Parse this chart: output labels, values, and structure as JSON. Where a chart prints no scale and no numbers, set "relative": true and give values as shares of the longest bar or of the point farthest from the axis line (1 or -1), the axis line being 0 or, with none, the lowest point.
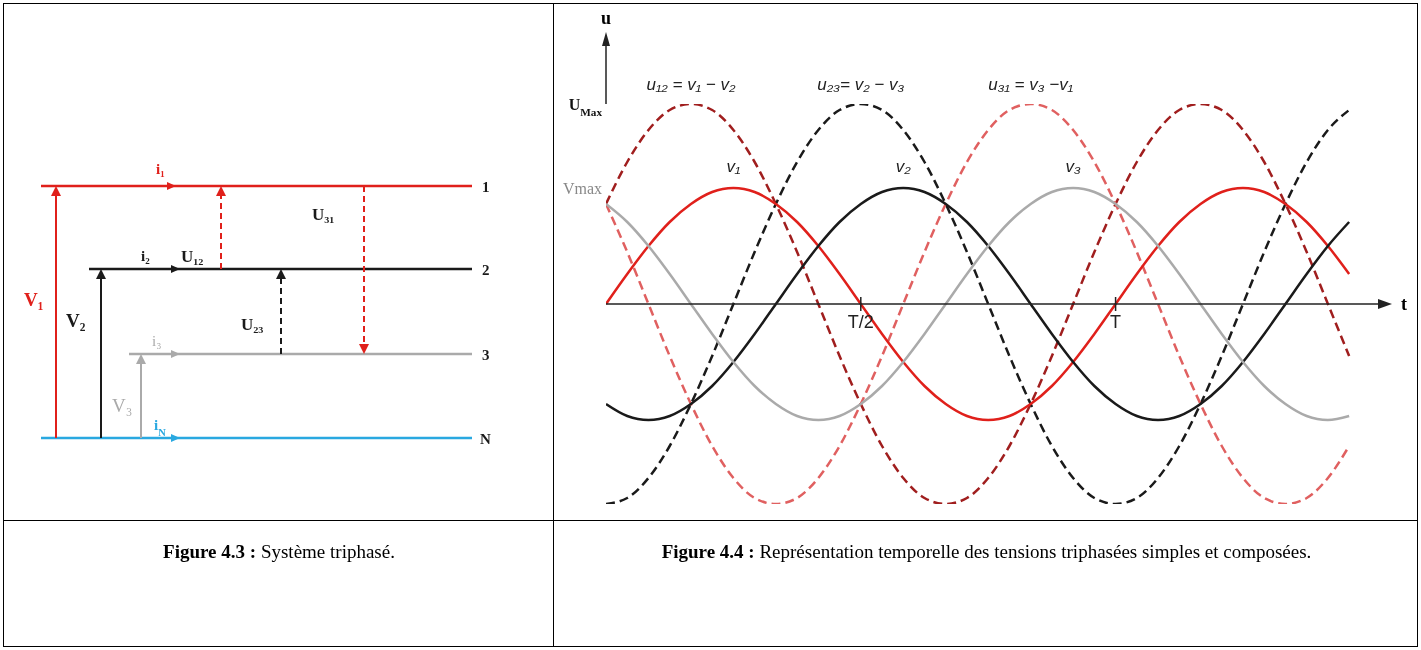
{
  "chart_data": [
    {
      "type": "other",
      "title": "Figure 4.3 : Système triphasé.",
      "annotations": [
        "i₁",
        "i₂",
        "i₃",
        "i$_{N}$",
        "V₁",
        "V₂",
        "V₃",
        "U₁₂",
        "U₂₃",
        "U₃₁",
        "1",
        "2",
        "3",
        "N"
      ]
    },
    {
      "type": "line",
      "title": "Figure 4.4 : Représentation temporelle des tensions triphasées simples et composées.",
      "xlabel": "t",
      "ylabel": "u",
      "relative": true,
      "marker": "none",
      "annotations": [
        "U$_{Max}$",
        "Vmax"
      ],
      "categories": [
        null,
        null,
        null,
        null,
        null,
        null,
        null,
        null,
        null,
        null,
        null,
        null,
        "T/2",
        null,
        null,
        null,
        null,
        null,
        null,
        null,
        null,
        null,
        null,
        null,
        "T",
        null,
        null,
        null,
        null,
        null,
        null,
        null,
        null,
        null,
        null,
        null
      ],
      "series": [
        {
          "name": "u₁₂ = v₁ − v₂",
          "color": "#a01e1e",
          "line_style": "dashed",
          "values": [
            0.5,
            0.71,
            0.87,
            0.97,
            1,
            0.97,
            0.87,
            0.71,
            0.5,
            0.26,
            0,
            -0.26,
            -0.5,
            -0.71,
            -0.87,
            -0.97,
            -1,
            -0.97,
            -0.87,
            -0.71,
            -0.5,
            -0.26,
            0,
            0.26,
            0.5,
            0.71,
            0.87,
            0.97,
            1,
            0.97,
            0.87,
            0.71,
            0.5,
            0.26,
            0,
            -0.26
          ]
        },
        {
          "name": "u₂₃= v₂ − v₃",
          "color": "#1a1a1a",
          "line_style": "dashed",
          "values": [
            -1,
            -0.97,
            -0.87,
            -0.71,
            -0.5,
            -0.26,
            0,
            0.26,
            0.5,
            0.71,
            0.87,
            0.97,
            1,
            0.97,
            0.87,
            0.71,
            0.5,
            0.26,
            0,
            -0.26,
            -0.5,
            -0.71,
            -0.87,
            -0.97,
            -1,
            -0.97,
            -0.87,
            -0.71,
            -0.5,
            -0.26,
            0,
            0.26,
            0.5,
            0.71,
            0.87,
            0.97
          ]
        },
        {
          "name": "u₃₁ = v₃ −v₁",
          "color": "#e06060",
          "line_style": "dashed",
          "values": [
            0.5,
            0.26,
            0,
            -0.26,
            -0.5,
            -0.71,
            -0.87,
            -0.97,
            -1,
            -0.97,
            -0.87,
            -0.71,
            -0.5,
            -0.26,
            0,
            0.26,
            0.5,
            0.71,
            0.87,
            0.97,
            1,
            0.97,
            0.87,
            0.71,
            0.5,
            0.26,
            0,
            -0.26,
            -0.5,
            -0.71,
            -0.87,
            -0.97,
            -1,
            -0.97,
            -0.87,
            -0.71
          ]
        },
        {
          "name": "v₁",
          "color": "#e0201b",
          "line_style": "solid",
          "values": [
            0,
            0.15,
            0.29,
            0.41,
            0.5,
            0.56,
            0.58,
            0.56,
            0.5,
            0.41,
            0.29,
            0.15,
            0,
            -0.15,
            -0.29,
            -0.41,
            -0.5,
            -0.56,
            -0.58,
            -0.56,
            -0.5,
            -0.41,
            -0.29,
            -0.15,
            0,
            0.15,
            0.29,
            0.41,
            0.5,
            0.56,
            0.58,
            0.56,
            0.5,
            0.41,
            0.29,
            0.15
          ]
        },
        {
          "name": "v₂",
          "color": "#1a1a1a",
          "line_style": "solid",
          "values": [
            -0.5,
            -0.56,
            -0.58,
            -0.56,
            -0.5,
            -0.41,
            -0.29,
            -0.15,
            0,
            0.15,
            0.29,
            0.41,
            0.5,
            0.56,
            0.58,
            0.56,
            0.5,
            0.41,
            0.29,
            0.15,
            0,
            -0.15,
            -0.29,
            -0.41,
            -0.5,
            -0.56,
            -0.58,
            -0.56,
            -0.5,
            -0.41,
            -0.29,
            -0.15,
            0,
            0.15,
            0.29,
            0.41
          ]
        },
        {
          "name": "v₃",
          "color": "#aaaaaa",
          "line_style": "solid",
          "values": [
            0.5,
            0.41,
            0.29,
            0.15,
            0,
            -0.15,
            -0.29,
            -0.41,
            -0.5,
            -0.56,
            -0.58,
            -0.56,
            -0.5,
            -0.41,
            -0.29,
            -0.15,
            0,
            0.15,
            0.29,
            0.41,
            0.5,
            0.56,
            0.58,
            0.56,
            0.5,
            0.41,
            0.29,
            0.15,
            0,
            -0.15,
            -0.29,
            -0.41,
            -0.5,
            -0.56,
            -0.58,
            -0.56
          ]
        }
      ]
    }
  ]
}
